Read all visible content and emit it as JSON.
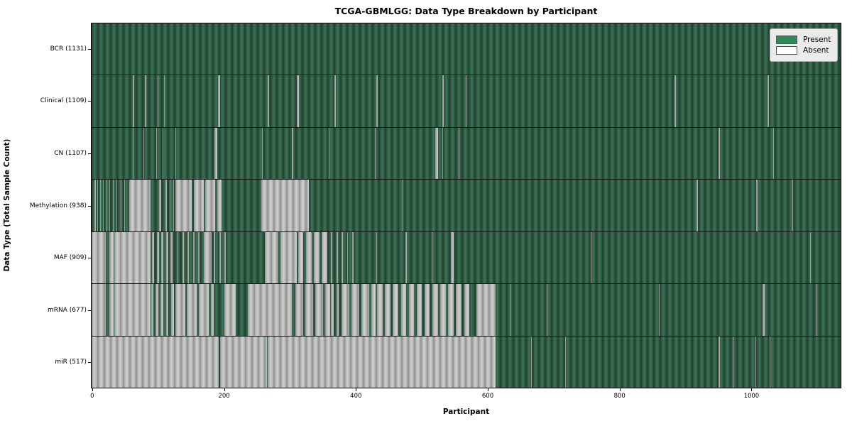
{
  "title": "TCGA-GBMLGG: Data Type Breakdown by Participant",
  "legend": {
    "present_label": "Present",
    "absent_label": "Absent"
  },
  "colors": {
    "present": "#2e8b57",
    "absent": "#ffffff",
    "legend_background": "#ebebeb"
  },
  "chart_data": {
    "type": "heatmap",
    "title": "TCGA-GBMLGG: Data Type Breakdown by Participant",
    "xlabel": "Participant",
    "ylabel": "Data Type (Total Sample Count)",
    "legend": [
      "Present",
      "Absent"
    ],
    "legend_position": "upper right",
    "n_participants": 1131,
    "x_ticks": [
      0,
      200,
      400,
      600,
      800,
      1000
    ],
    "rows": [
      {
        "name": "BCR",
        "label": "BCR (1131)",
        "present_count": 1131,
        "absent_ranges": []
      },
      {
        "name": "Clinical",
        "label": "Clinical (1109)",
        "present_count": 1109,
        "absent_ranges": [
          [
            61,
            63
          ],
          [
            79,
            81
          ],
          [
            98,
            99
          ],
          [
            108,
            109
          ],
          [
            190,
            193
          ],
          [
            266,
            268
          ],
          [
            310,
            313
          ],
          [
            367,
            369
          ],
          [
            431,
            433
          ],
          [
            531,
            533
          ],
          [
            567,
            568
          ],
          [
            884,
            886
          ],
          [
            1025,
            1027
          ]
        ]
      },
      {
        "name": "CN",
        "label": "CN (1107)",
        "present_count": 1107,
        "absent_ranges": [
          [
            60,
            62
          ],
          [
            77,
            78
          ],
          [
            96,
            97
          ],
          [
            106,
            107
          ],
          [
            125,
            126
          ],
          [
            185,
            189
          ],
          [
            257,
            258
          ],
          [
            302,
            304
          ],
          [
            358,
            359
          ],
          [
            429,
            430
          ],
          [
            520,
            524
          ],
          [
            531,
            532
          ],
          [
            556,
            557
          ],
          [
            951,
            953
          ],
          [
            1034,
            1035
          ]
        ]
      },
      {
        "name": "Methylation",
        "label": "Methylation (938)",
        "present_count": 938,
        "absent_ranges": [
          [
            2,
            4
          ],
          [
            7,
            8
          ],
          [
            11,
            12
          ],
          [
            15,
            16
          ],
          [
            20,
            21
          ],
          [
            25,
            26
          ],
          [
            30,
            31
          ],
          [
            36,
            37
          ],
          [
            42,
            43
          ],
          [
            48,
            49
          ],
          [
            55,
            88
          ],
          [
            100,
            104
          ],
          [
            110,
            112
          ],
          [
            117,
            118
          ],
          [
            122,
            123
          ],
          [
            125,
            150
          ],
          [
            153,
            168
          ],
          [
            171,
            186
          ],
          [
            189,
            195
          ],
          [
            256,
            328
          ],
          [
            471,
            472
          ],
          [
            917,
            919
          ],
          [
            1008,
            1010
          ],
          [
            1063,
            1064
          ]
        ]
      },
      {
        "name": "MAF",
        "label": "MAF (909)",
        "present_count": 909,
        "absent_ranges": [
          [
            0,
            20
          ],
          [
            25,
            31
          ],
          [
            33,
            88
          ],
          [
            90,
            93
          ],
          [
            97,
            100
          ],
          [
            104,
            107
          ],
          [
            111,
            114
          ],
          [
            118,
            121
          ],
          [
            128,
            130
          ],
          [
            136,
            138
          ],
          [
            144,
            146
          ],
          [
            152,
            154
          ],
          [
            160,
            162
          ],
          [
            168,
            180
          ],
          [
            184,
            186
          ],
          [
            192,
            194
          ],
          [
            200,
            202
          ],
          [
            261,
            282
          ],
          [
            285,
            310
          ],
          [
            312,
            320
          ],
          [
            324,
            332
          ],
          [
            336,
            344
          ],
          [
            348,
            356
          ],
          [
            362,
            364
          ],
          [
            370,
            372
          ],
          [
            378,
            380
          ],
          [
            386,
            388
          ],
          [
            394,
            396
          ],
          [
            431,
            432
          ],
          [
            475,
            477
          ],
          [
            515,
            516
          ],
          [
            544,
            548
          ],
          [
            757,
            758
          ],
          [
            1090,
            1091
          ]
        ]
      },
      {
        "name": "mRNA",
        "label": "mRNA (677)",
        "present_count": 677,
        "absent_ranges": [
          [
            0,
            20
          ],
          [
            25,
            31
          ],
          [
            33,
            88
          ],
          [
            89,
            92
          ],
          [
            95,
            99
          ],
          [
            103,
            107
          ],
          [
            111,
            115
          ],
          [
            119,
            123
          ],
          [
            125,
            140
          ],
          [
            143,
            158
          ],
          [
            161,
            176
          ],
          [
            179,
            184
          ],
          [
            200,
            217
          ],
          [
            235,
            302
          ],
          [
            308,
            320
          ],
          [
            323,
            335
          ],
          [
            338,
            350
          ],
          [
            353,
            360
          ],
          [
            362,
            366
          ],
          [
            370,
            374
          ],
          [
            378,
            390
          ],
          [
            393,
            405
          ],
          [
            408,
            420
          ],
          [
            423,
            430
          ],
          [
            432,
            440
          ],
          [
            444,
            452
          ],
          [
            456,
            464
          ],
          [
            468,
            476
          ],
          [
            480,
            488
          ],
          [
            492,
            500
          ],
          [
            504,
            512
          ],
          [
            516,
            524
          ],
          [
            528,
            536
          ],
          [
            540,
            548
          ],
          [
            552,
            560
          ],
          [
            564,
            572
          ],
          [
            583,
            612
          ],
          [
            635,
            636
          ],
          [
            690,
            691
          ],
          [
            860,
            861
          ],
          [
            1018,
            1021
          ],
          [
            1100,
            1101
          ]
        ]
      },
      {
        "name": "miR",
        "label": "miR (517)",
        "present_count": 517,
        "absent_ranges": [
          [
            0,
            191
          ],
          [
            193,
            265
          ],
          [
            266,
            612
          ],
          [
            666,
            667
          ],
          [
            718,
            719
          ],
          [
            951,
            953
          ],
          [
            972,
            973
          ],
          [
            1007,
            1008
          ],
          [
            1028,
            1029
          ]
        ]
      }
    ]
  }
}
